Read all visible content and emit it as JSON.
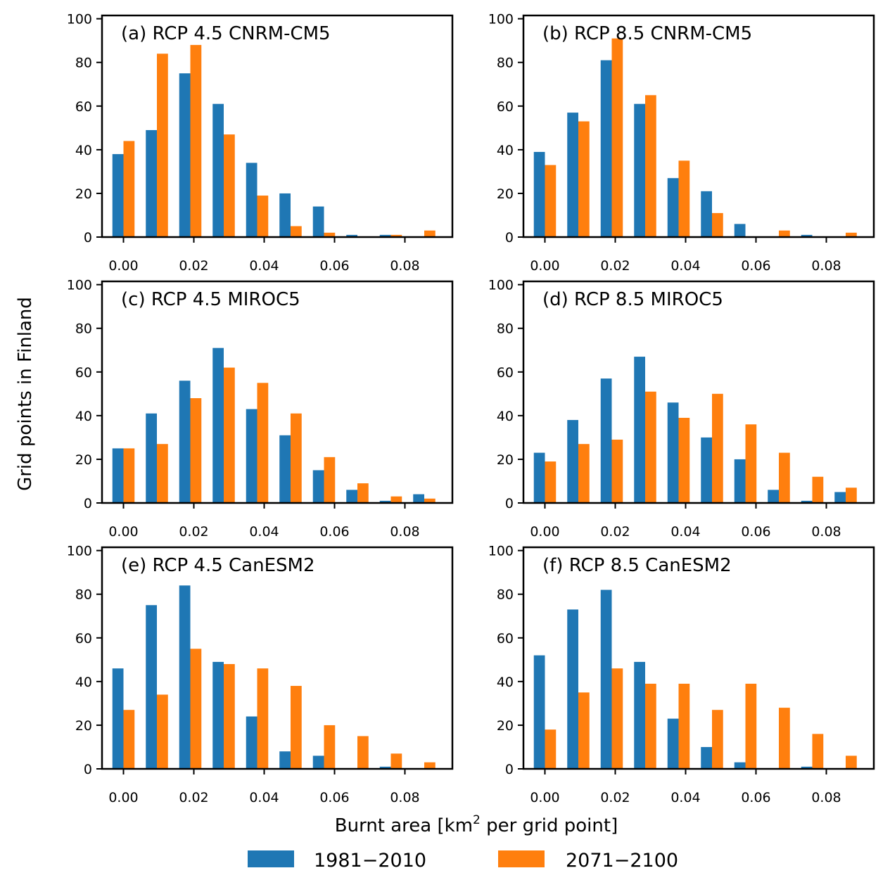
{
  "figure": {
    "ylabel": "Grid points in Finland",
    "xlabel_main": "Burnt area [km",
    "xlabel_sup": "2",
    "xlabel_tail": " per grid point]",
    "legend": [
      {
        "label": "1981−2010",
        "color": "#1f77b4"
      },
      {
        "label": "2071−2100",
        "color": "#ff7f0e"
      }
    ]
  },
  "chart_data": [
    {
      "type": "bar",
      "title": "(a) RCP 4.5 CNRM-CM5",
      "x_centers": [
        0.0,
        0.0095,
        0.019,
        0.0285,
        0.038,
        0.0475,
        0.057,
        0.0665,
        0.076,
        0.0855
      ],
      "x_ticks": [
        "0.00",
        "0.02",
        "0.04",
        "0.06",
        "0.08"
      ],
      "y_ticks": [
        "0",
        "20",
        "40",
        "60",
        "80",
        "100"
      ],
      "ylim": [
        0,
        100
      ],
      "series": [
        {
          "name": "1981−2010",
          "values": [
            38,
            49,
            75,
            61,
            34,
            20,
            14,
            1,
            1,
            0
          ]
        },
        {
          "name": "2071−2100",
          "values": [
            44,
            84,
            88,
            47,
            19,
            5,
            2,
            0,
            1,
            3
          ]
        }
      ]
    },
    {
      "type": "bar",
      "title": "(b) RCP 8.5 CNRM-CM5",
      "x_centers": [
        0.0,
        0.0095,
        0.019,
        0.0285,
        0.038,
        0.0475,
        0.057,
        0.0665,
        0.076,
        0.0855
      ],
      "x_ticks": [
        "0.00",
        "0.02",
        "0.04",
        "0.06",
        "0.08"
      ],
      "y_ticks": [
        "0",
        "20",
        "40",
        "60",
        "80",
        "100"
      ],
      "ylim": [
        0,
        100
      ],
      "series": [
        {
          "name": "1981−2010",
          "values": [
            39,
            57,
            81,
            61,
            27,
            21,
            6,
            0,
            1,
            0
          ]
        },
        {
          "name": "2071−2100",
          "values": [
            33,
            53,
            91,
            65,
            35,
            11,
            0,
            3,
            0,
            2
          ]
        }
      ]
    },
    {
      "type": "bar",
      "title": "(c) RCP 4.5 MIROC5",
      "x_centers": [
        0.0,
        0.0095,
        0.019,
        0.0285,
        0.038,
        0.0475,
        0.057,
        0.0665,
        0.076,
        0.0855
      ],
      "x_ticks": [
        "0.00",
        "0.02",
        "0.04",
        "0.06",
        "0.08"
      ],
      "y_ticks": [
        "0",
        "20",
        "40",
        "60",
        "80",
        "100"
      ],
      "ylim": [
        0,
        100
      ],
      "series": [
        {
          "name": "1981−2010",
          "values": [
            25,
            41,
            56,
            71,
            43,
            31,
            15,
            6,
            1,
            4
          ]
        },
        {
          "name": "2071−2100",
          "values": [
            25,
            27,
            48,
            62,
            55,
            41,
            21,
            9,
            3,
            2
          ]
        }
      ]
    },
    {
      "type": "bar",
      "title": "(d) RCP 8.5 MIROC5",
      "x_centers": [
        0.0,
        0.0095,
        0.019,
        0.0285,
        0.038,
        0.0475,
        0.057,
        0.0665,
        0.076,
        0.0855
      ],
      "x_ticks": [
        "0.00",
        "0.02",
        "0.04",
        "0.06",
        "0.08"
      ],
      "y_ticks": [
        "0",
        "20",
        "40",
        "60",
        "80",
        "100"
      ],
      "ylim": [
        0,
        100
      ],
      "series": [
        {
          "name": "1981−2010",
          "values": [
            23,
            38,
            57,
            67,
            46,
            30,
            20,
            6,
            1,
            5
          ]
        },
        {
          "name": "2071−2100",
          "values": [
            19,
            27,
            29,
            51,
            39,
            50,
            36,
            23,
            12,
            7
          ]
        }
      ]
    },
    {
      "type": "bar",
      "title": "(e) RCP 4.5 CanESM2",
      "x_centers": [
        0.0,
        0.0095,
        0.019,
        0.0285,
        0.038,
        0.0475,
        0.057,
        0.0665,
        0.076,
        0.0855
      ],
      "x_ticks": [
        "0.00",
        "0.02",
        "0.04",
        "0.06",
        "0.08"
      ],
      "y_ticks": [
        "0",
        "20",
        "40",
        "60",
        "80",
        "100"
      ],
      "ylim": [
        0,
        100
      ],
      "series": [
        {
          "name": "1981−2010",
          "values": [
            46,
            75,
            84,
            49,
            24,
            8,
            6,
            0,
            1,
            0
          ]
        },
        {
          "name": "2071−2100",
          "values": [
            27,
            34,
            55,
            48,
            46,
            38,
            20,
            15,
            7,
            3
          ]
        }
      ]
    },
    {
      "type": "bar",
      "title": "(f) RCP 8.5 CanESM2",
      "x_centers": [
        0.0,
        0.0095,
        0.019,
        0.0285,
        0.038,
        0.0475,
        0.057,
        0.0665,
        0.076,
        0.0855
      ],
      "x_ticks": [
        "0.00",
        "0.02",
        "0.04",
        "0.06",
        "0.08"
      ],
      "y_ticks": [
        "0",
        "20",
        "40",
        "60",
        "80",
        "100"
      ],
      "ylim": [
        0,
        100
      ],
      "series": [
        {
          "name": "1981−2010",
          "values": [
            52,
            73,
            82,
            49,
            23,
            10,
            3,
            0,
            1,
            0
          ]
        },
        {
          "name": "2071−2100",
          "values": [
            18,
            35,
            46,
            39,
            39,
            27,
            39,
            28,
            16,
            6
          ]
        }
      ]
    }
  ]
}
